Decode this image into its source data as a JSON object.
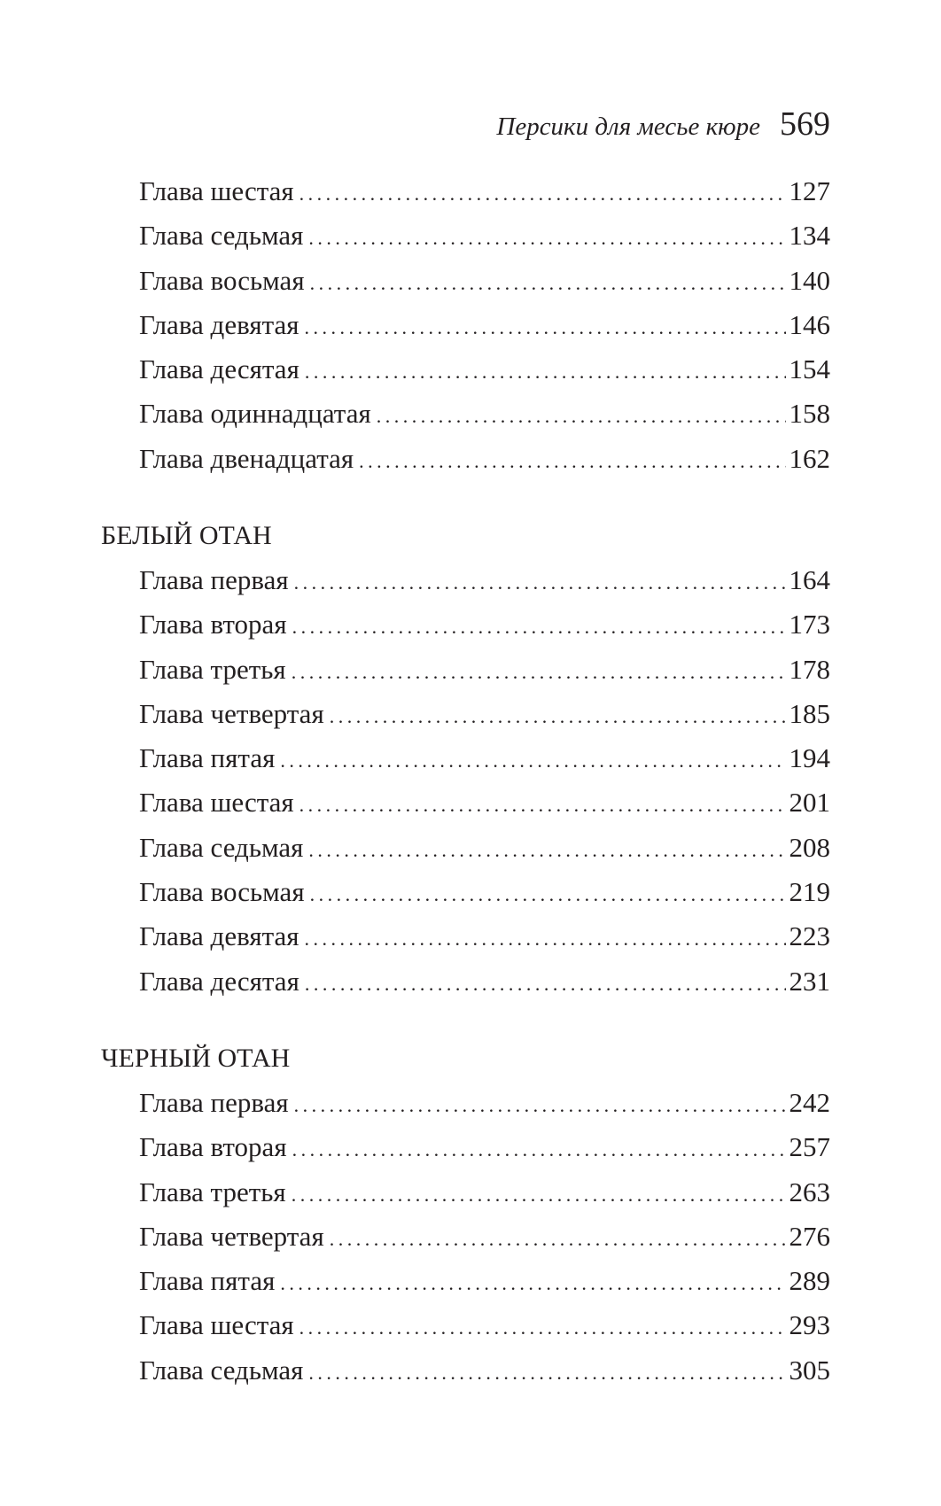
{
  "header": {
    "title": "Персики для месье кюре",
    "page_number": "569"
  },
  "sections": [
    {
      "heading": "",
      "entries": [
        {
          "label": "Глава шестая",
          "page": "127"
        },
        {
          "label": "Глава седьмая",
          "page": "134"
        },
        {
          "label": "Глава восьмая",
          "page": "140"
        },
        {
          "label": "Глава девятая",
          "page": "146"
        },
        {
          "label": "Глава десятая",
          "page": "154"
        },
        {
          "label": "Глава одиннадцатая",
          "page": "158"
        },
        {
          "label": "Глава двенадцатая",
          "page": "162"
        }
      ]
    },
    {
      "heading": "БЕЛЫЙ ОТАН",
      "entries": [
        {
          "label": "Глава первая",
          "page": "164"
        },
        {
          "label": "Глава вторая",
          "page": "173"
        },
        {
          "label": "Глава третья",
          "page": "178"
        },
        {
          "label": "Глава четвертая",
          "page": "185"
        },
        {
          "label": "Глава пятая",
          "page": "194"
        },
        {
          "label": "Глава шестая",
          "page": "201"
        },
        {
          "label": "Глава седьмая",
          "page": "208"
        },
        {
          "label": "Глава восьмая",
          "page": "219"
        },
        {
          "label": "Глава девятая",
          "page": "223"
        },
        {
          "label": "Глава десятая",
          "page": "231"
        }
      ]
    },
    {
      "heading": "ЧЕРНЫЙ ОТАН",
      "entries": [
        {
          "label": "Глава первая",
          "page": "242"
        },
        {
          "label": "Глава вторая",
          "page": "257"
        },
        {
          "label": "Глава третья",
          "page": "263"
        },
        {
          "label": "Глава четвертая",
          "page": "276"
        },
        {
          "label": "Глава пятая",
          "page": "289"
        },
        {
          "label": "Глава шестая",
          "page": "293"
        },
        {
          "label": "Глава седьмая",
          "page": "305"
        }
      ]
    }
  ]
}
